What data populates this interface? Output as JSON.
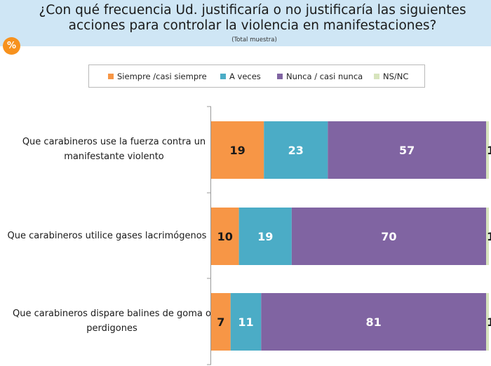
{
  "header": {
    "title": "¿Con qué frecuencia Ud. justificaría o no justificaría las siguientes acciones para controlar la violencia en manifestaciones?",
    "subtitle": "(Total muestra)",
    "badge": "%"
  },
  "colors": {
    "siempre": "#f79646",
    "a_veces": "#4bacc6",
    "nunca": "#8064a2",
    "nsnc": "#d7e4bd",
    "header_bg": "#cfe6f5",
    "badge": "#f7921e"
  },
  "chart_data": {
    "type": "bar",
    "orientation": "horizontal",
    "stacked": true,
    "title": "¿Con qué frecuencia Ud. justificaría o no justificaría las siguientes acciones para controlar la violencia en manifestaciones?",
    "subtitle": "(Total muestra)",
    "xlim": [
      0,
      100
    ],
    "legend_position": "top",
    "categories": [
      "Que carabineros use la fuerza contra un manifestante violento",
      "Que carabineros utilice gases lacrimógenos",
      "Que carabineros dispare balines de goma o perdigones"
    ],
    "series": [
      {
        "name": "Siempre /casi siempre",
        "key": "siempre",
        "values": [
          19,
          10,
          7
        ]
      },
      {
        "name": "A veces",
        "key": "a_veces",
        "values": [
          23,
          19,
          11
        ]
      },
      {
        "name": "Nunca / casi nunca",
        "key": "nunca",
        "values": [
          57,
          70,
          81
        ]
      },
      {
        "name": "NS/NC",
        "key": "nsnc",
        "values": [
          1,
          1,
          1
        ]
      }
    ]
  }
}
